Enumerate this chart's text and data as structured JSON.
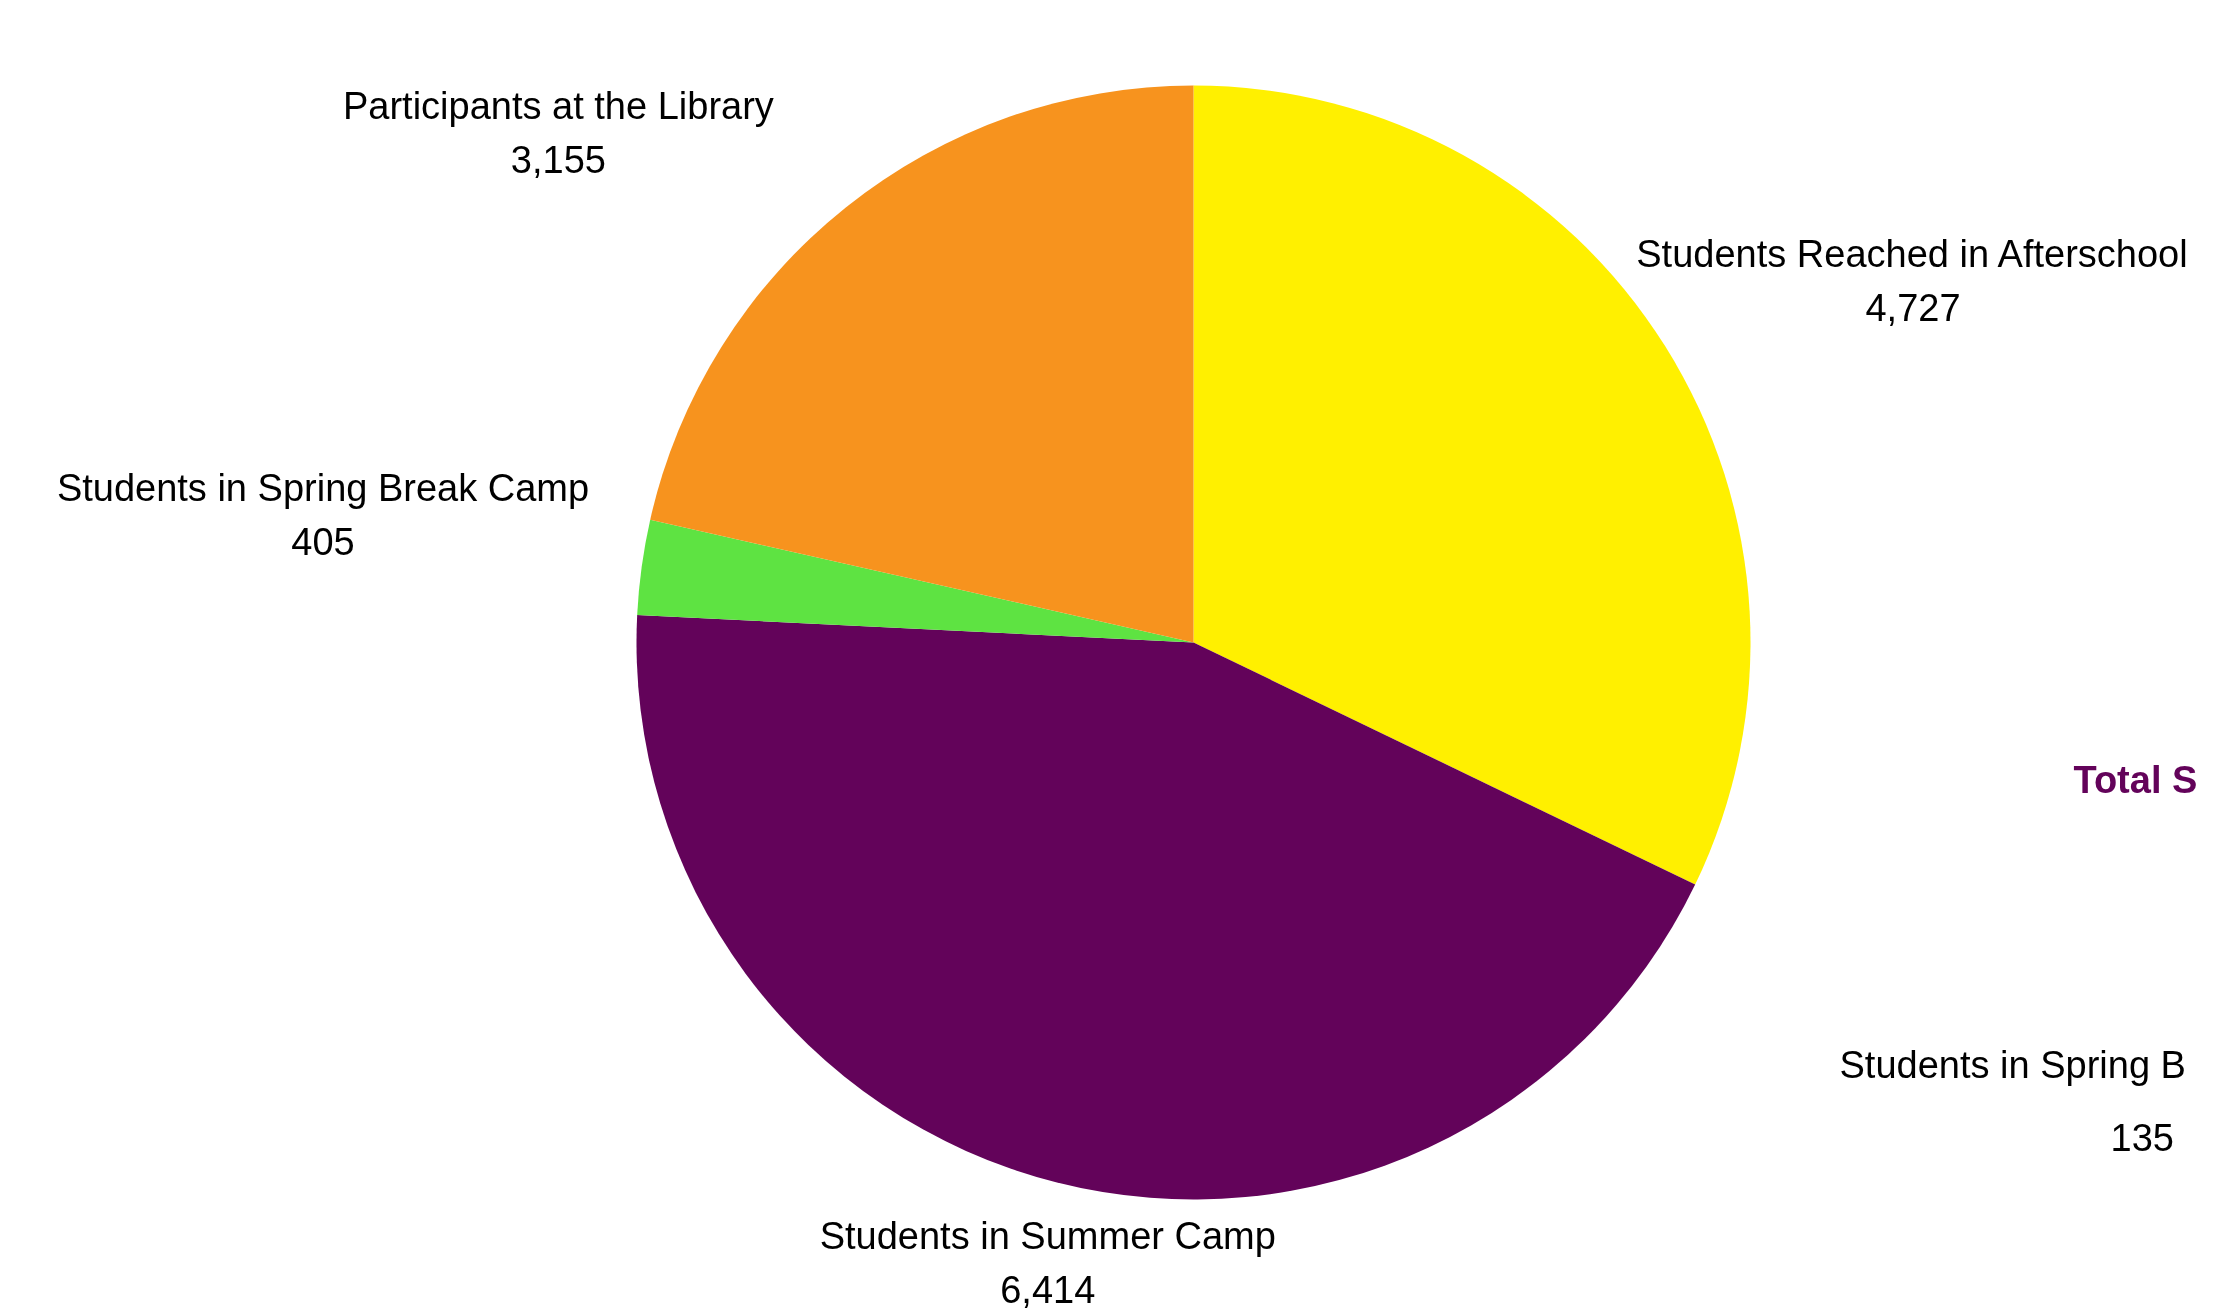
{
  "chart_data": {
    "type": "pie",
    "categories": [
      "Students Reached in Afterschool",
      "Students in Summer Camp",
      "Students in Spring Break Camp",
      "Participants at the Library"
    ],
    "values": [
      4727,
      6414,
      405,
      3155
    ],
    "colors": [
      "#fff000",
      "#63035a",
      "#5ee342",
      "#f7931e"
    ],
    "value_labels": [
      "4,727",
      "6,414",
      "405",
      "3,155"
    ],
    "annotations": [
      "Total S",
      "Students in Spring B",
      "135"
    ]
  }
}
